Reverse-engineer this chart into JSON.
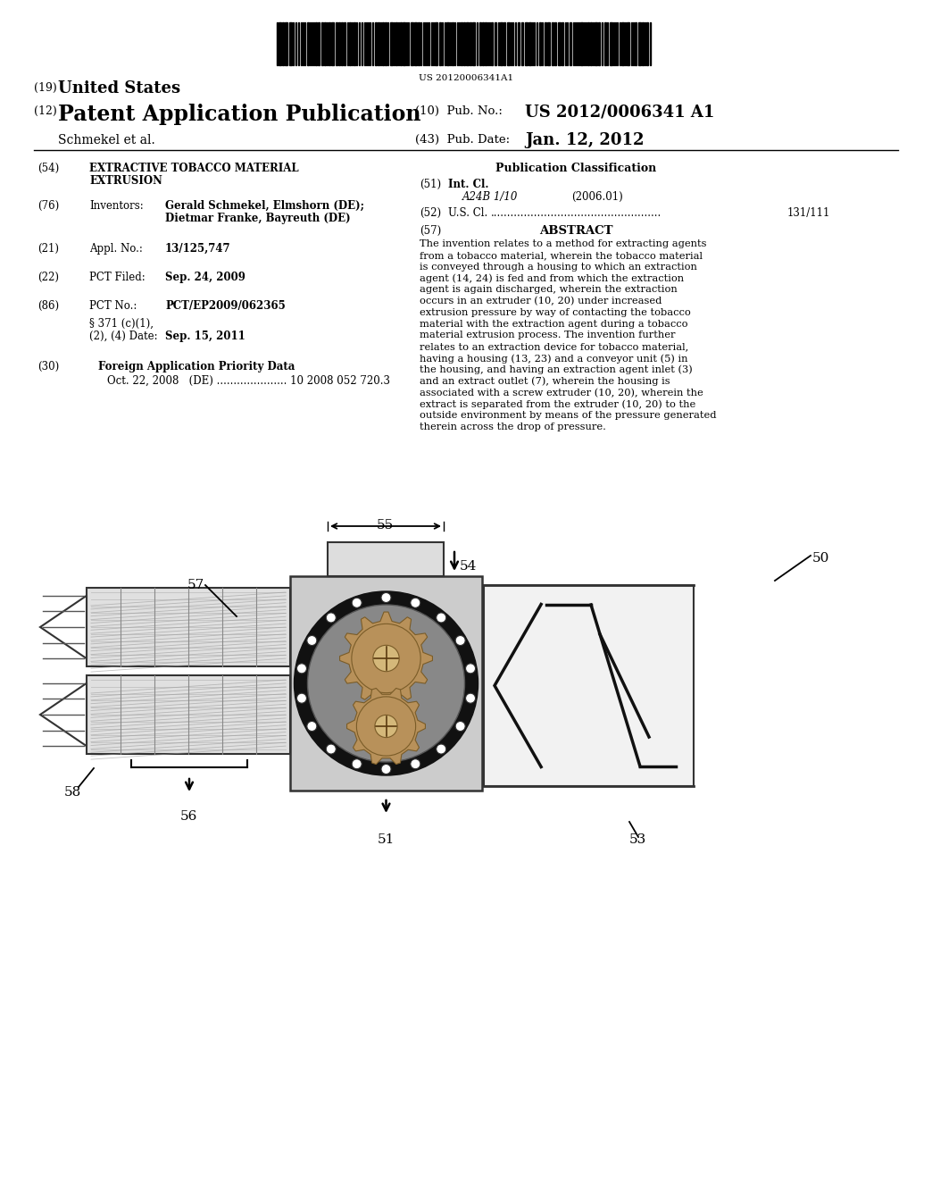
{
  "background_color": "#ffffff",
  "barcode_text": "US 20120006341A1",
  "title_19_small": "(19)",
  "title_19_large": "United States",
  "title_12_small": "(12)",
  "title_12_large": "Patent Application Publication",
  "pub_no_label": "(10)  Pub. No.:",
  "pub_no_value": "US 2012/0006341 A1",
  "author": "Schmekel et al.",
  "pub_date_label": "(43)  Pub. Date:",
  "pub_date_value": "Jan. 12, 2012",
  "field54_label": "(54)",
  "field54_line1": "EXTRACTIVE TOBACCO MATERIAL",
  "field54_line2": "EXTRUSION",
  "field76_label": "(76)",
  "field76_title": "Inventors:",
  "field76_line1": "Gerald Schmekel, Elmshorn (DE);",
  "field76_line2": "Dietmar Franke, Bayreuth (DE)",
  "field21_label": "(21)",
  "field21_title": "Appl. No.:",
  "field21_value": "13/125,747",
  "field22_label": "(22)",
  "field22_title": "PCT Filed:",
  "field22_value": "Sep. 24, 2009",
  "field86_label": "(86)",
  "field86_title": "PCT No.:",
  "field86_value": "PCT/EP2009/062365",
  "field86b_line1": "§ 371 (c)(1),",
  "field86b_line2": "(2), (4) Date:",
  "field86b_value": "Sep. 15, 2011",
  "field30_label": "(30)",
  "field30_title": "Foreign Application Priority Data",
  "field30_value": "Oct. 22, 2008   (DE) ..................... 10 2008 052 720.3",
  "pub_class_title": "Publication Classification",
  "field51_label": "(51)",
  "field51_title": "Int. Cl.",
  "field51_class": "A24B 1/10",
  "field51_year": "(2006.01)",
  "field52_label": "(52)",
  "field52_title": "U.S. Cl.",
  "field52_dots": "...................................................",
  "field52_value": "131/111",
  "field57_label": "(57)",
  "field57_title": "ABSTRACT",
  "abstract_text": "The invention relates to a method for extracting agents from a tobacco material, wherein the tobacco material is conveyed through a housing to which an extraction agent (14, 24) is fed and from which the extraction agent is again discharged, wherein the extraction occurs in an extruder (10, 20) under increased extrusion pressure by way of contacting the tobacco material with the extraction agent during a tobacco material extrusion process. The invention further relates to an extraction device for tobacco material, having a housing (13, 23) and a conveyor unit (5) in the housing, and having an extraction agent inlet (3) and an extract outlet (7), wherein the housing is associated with a screw extruder (10, 20), wherein the extract is separated from the extruder (10, 20) to the outside environment by means of the pressure generated therein across the drop of pressure.",
  "abstract_line_chars": 55
}
